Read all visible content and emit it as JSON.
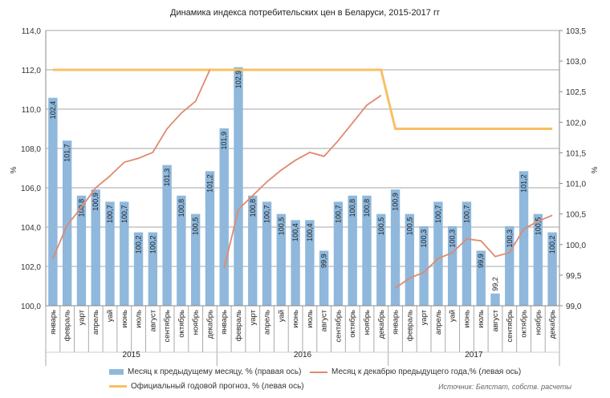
{
  "chart_data": {
    "type": "bar+line",
    "title": "Динамика индекса потребительских цен в Беларуси, 2015-2017 гг",
    "ylabel_left": "%",
    "ylabel_right": "%",
    "ylim_left": [
      100,
      114
    ],
    "ylim_right": [
      99,
      103.5
    ],
    "yticks_left": [
      "100,0",
      "102,0",
      "104,0",
      "106,0",
      "108,0",
      "110,0",
      "112,0",
      "114,0"
    ],
    "yticks_right": [
      "99,0",
      "99,5",
      "100,0",
      "100,5",
      "101,0",
      "101,5",
      "102,0",
      "102,5",
      "103,0",
      "103,5"
    ],
    "months": [
      "январь",
      "февраль",
      "уарт",
      "апрель",
      "уай",
      "июнь",
      "июль",
      "август",
      "сентябрь",
      "октябрь",
      "ноябрь",
      "декабрь"
    ],
    "years": [
      "2015",
      "2016",
      "2017"
    ],
    "series": [
      {
        "name": "Месяц к предыдущему месяцу, % (правая ось)",
        "type": "bar",
        "axis": "right",
        "color": "#8fb8dc",
        "values": [
          102.4,
          101.7,
          100.8,
          100.9,
          100.7,
          100.7,
          100.2,
          100.2,
          101.3,
          100.8,
          100.5,
          101.2,
          101.9,
          102.9,
          100.8,
          100.7,
          100.5,
          100.4,
          100.4,
          99.9,
          100.7,
          100.8,
          100.8,
          100.5,
          100.9,
          100.5,
          100.3,
          100.7,
          100.3,
          100.7,
          99.9,
          99.2,
          100.3,
          101.2,
          100.5,
          100.2
        ],
        "labels": [
          "102,4",
          "101,7",
          "100,8",
          "100,9",
          "100,7",
          "100,7",
          "100,2",
          "100,2",
          "101,3",
          "100,8",
          "100,5",
          "101,2",
          "101,9",
          "102,9",
          "100,8",
          "100,7",
          "100,5",
          "100,4",
          "100,4",
          "99,9",
          "100,7",
          "100,8",
          "100,8",
          "100,5",
          "100,9",
          "100,5",
          "100,3",
          "100,7",
          "100,3",
          "100,7",
          "99,9",
          "99,2",
          "100,3",
          "101,2",
          "100,5",
          "100,2"
        ]
      },
      {
        "name": "Месяц к декабрю предыдущего года,% (левая ось)",
        "type": "line",
        "axis": "left",
        "color": "#e08a6e",
        "values": [
          102.4,
          104.1,
          105.0,
          106.0,
          106.6,
          107.3,
          107.5,
          107.8,
          109.0,
          109.8,
          110.4,
          112.0,
          101.9,
          104.9,
          105.6,
          106.3,
          106.9,
          107.4,
          107.8,
          107.6,
          108.4,
          109.3,
          110.2,
          110.7,
          100.9,
          101.4,
          101.7,
          102.4,
          102.7,
          103.4,
          103.3,
          102.5,
          102.7,
          103.9,
          104.3,
          104.6
        ]
      },
      {
        "name": "Официальный годовой прогноз, % (левая ось)",
        "type": "line",
        "axis": "left",
        "color": "#f7c065",
        "values": [
          112,
          112,
          112,
          112,
          112,
          112,
          112,
          112,
          112,
          112,
          112,
          112,
          112,
          112,
          112,
          112,
          112,
          112,
          112,
          112,
          112,
          112,
          112,
          112,
          109,
          109,
          109,
          109,
          109,
          109,
          109,
          109,
          109,
          109,
          109,
          109
        ]
      }
    ],
    "source": "Источник: Белстат, собств. расчеты"
  }
}
